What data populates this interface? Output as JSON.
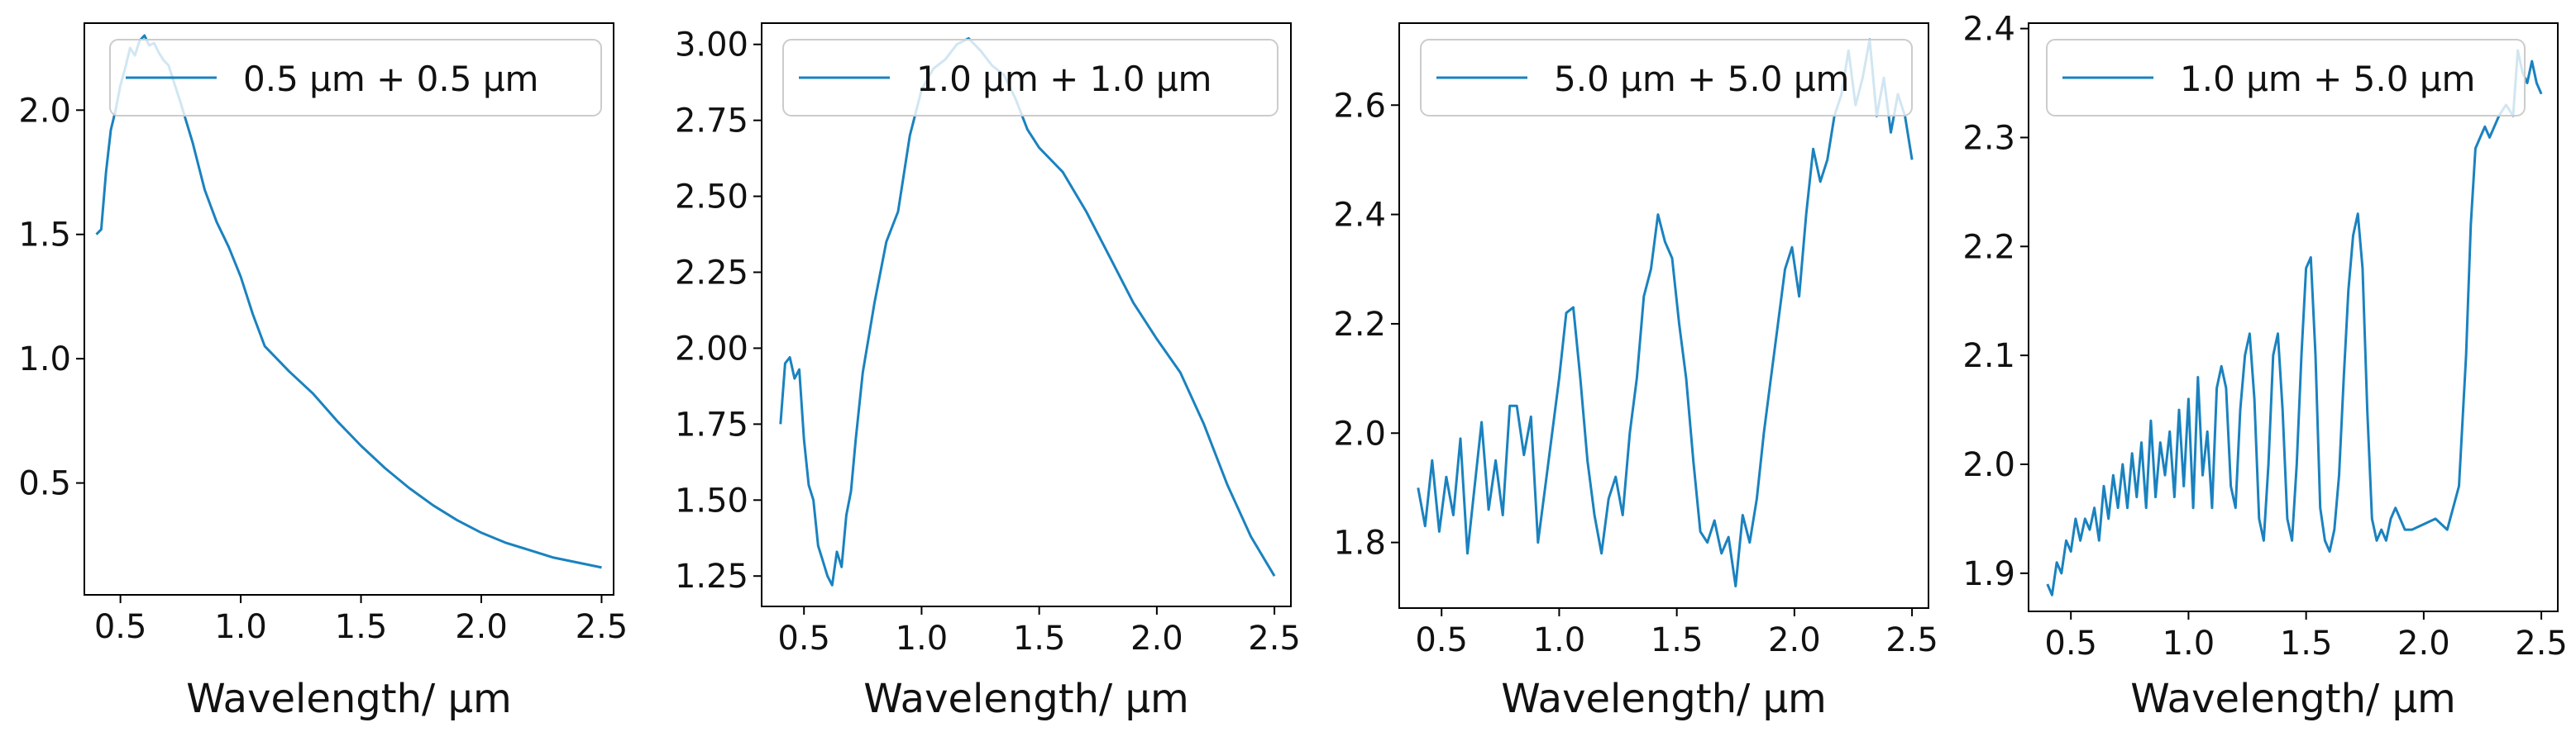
{
  "colors": {
    "line": "#1a82bf",
    "axis": "#000000",
    "text": "#111111",
    "legend_border": "#cccccc"
  },
  "chart_data": [
    {
      "type": "line",
      "xlabel": "Wavelength/ μm",
      "ylabel": "",
      "xlim": [
        0.35,
        2.55
      ],
      "ylim": [
        0.05,
        2.35
      ],
      "xticks": [
        "0.5",
        "1.0",
        "1.5",
        "2.0",
        "2.5"
      ],
      "yticks": [
        "0.5",
        "1.0",
        "1.5",
        "2.0"
      ],
      "legend": "0.5 μm + 0.5 μm",
      "legend_position": "top-right",
      "series": [
        {
          "name": "0.5 μm + 0.5 μm",
          "x": [
            0.4,
            0.42,
            0.44,
            0.46,
            0.48,
            0.5,
            0.52,
            0.54,
            0.56,
            0.58,
            0.6,
            0.62,
            0.64,
            0.66,
            0.68,
            0.7,
            0.72,
            0.75,
            0.8,
            0.85,
            0.9,
            0.95,
            1.0,
            1.05,
            1.1,
            1.2,
            1.3,
            1.4,
            1.5,
            1.6,
            1.7,
            1.8,
            1.9,
            2.0,
            2.1,
            2.2,
            2.3,
            2.4,
            2.5
          ],
          "y": [
            1.5,
            1.52,
            1.75,
            1.92,
            2.0,
            2.1,
            2.17,
            2.25,
            2.22,
            2.28,
            2.3,
            2.26,
            2.27,
            2.23,
            2.2,
            2.18,
            2.12,
            2.03,
            1.87,
            1.68,
            1.55,
            1.45,
            1.33,
            1.18,
            1.05,
            0.95,
            0.86,
            0.75,
            0.65,
            0.56,
            0.48,
            0.41,
            0.35,
            0.3,
            0.26,
            0.23,
            0.2,
            0.18,
            0.16
          ]
        }
      ]
    },
    {
      "type": "line",
      "xlabel": "Wavelength/ μm",
      "ylabel": "",
      "xlim": [
        0.32,
        2.57
      ],
      "ylim": [
        1.15,
        3.07
      ],
      "xticks": [
        "0.5",
        "1.0",
        "1.5",
        "2.0",
        "2.5"
      ],
      "yticks": [
        "1.25",
        "1.50",
        "1.75",
        "2.00",
        "2.25",
        "2.50",
        "2.75",
        "3.00"
      ],
      "legend": "1.0 μm + 1.0 μm",
      "legend_position": "top-right",
      "series": [
        {
          "name": "1.0 μm + 1.0 μm",
          "x": [
            0.4,
            0.42,
            0.44,
            0.46,
            0.48,
            0.5,
            0.52,
            0.54,
            0.56,
            0.58,
            0.6,
            0.62,
            0.64,
            0.66,
            0.68,
            0.7,
            0.72,
            0.75,
            0.8,
            0.85,
            0.9,
            0.95,
            1.0,
            1.05,
            1.1,
            1.15,
            1.2,
            1.25,
            1.3,
            1.35,
            1.4,
            1.45,
            1.5,
            1.6,
            1.7,
            1.8,
            1.9,
            2.0,
            2.1,
            2.2,
            2.3,
            2.4,
            2.5
          ],
          "y": [
            1.75,
            1.95,
            1.97,
            1.9,
            1.93,
            1.7,
            1.55,
            1.5,
            1.35,
            1.3,
            1.25,
            1.22,
            1.33,
            1.28,
            1.45,
            1.53,
            1.7,
            1.92,
            2.15,
            2.35,
            2.45,
            2.7,
            2.85,
            2.92,
            2.95,
            3.0,
            3.02,
            2.98,
            2.93,
            2.9,
            2.82,
            2.72,
            2.66,
            2.58,
            2.45,
            2.3,
            2.15,
            2.03,
            1.92,
            1.75,
            1.55,
            1.38,
            1.25
          ]
        }
      ]
    },
    {
      "type": "line",
      "xlabel": "Wavelength/ μm",
      "ylabel": "",
      "xlim": [
        0.32,
        2.57
      ],
      "ylim": [
        1.68,
        2.75
      ],
      "xticks": [
        "0.5",
        "1.0",
        "1.5",
        "2.0",
        "2.5"
      ],
      "yticks": [
        "1.8",
        "2.0",
        "2.2",
        "2.4",
        "2.6"
      ],
      "legend": "5.0 μm + 5.0 μm",
      "legend_position": "top-right",
      "series": [
        {
          "name": "5.0 μm + 5.0 μm",
          "x": [
            0.4,
            0.43,
            0.46,
            0.49,
            0.52,
            0.55,
            0.58,
            0.61,
            0.64,
            0.67,
            0.7,
            0.73,
            0.76,
            0.79,
            0.82,
            0.85,
            0.88,
            0.91,
            0.94,
            0.97,
            1.0,
            1.03,
            1.06,
            1.09,
            1.12,
            1.15,
            1.18,
            1.21,
            1.24,
            1.27,
            1.3,
            1.33,
            1.36,
            1.39,
            1.42,
            1.45,
            1.48,
            1.51,
            1.54,
            1.57,
            1.6,
            1.63,
            1.66,
            1.69,
            1.72,
            1.75,
            1.78,
            1.81,
            1.84,
            1.87,
            1.9,
            1.93,
            1.96,
            1.99,
            2.02,
            2.05,
            2.08,
            2.11,
            2.14,
            2.17,
            2.2,
            2.23,
            2.26,
            2.29,
            2.32,
            2.35,
            2.38,
            2.41,
            2.44,
            2.47,
            2.5
          ],
          "y": [
            1.9,
            1.83,
            1.95,
            1.82,
            1.92,
            1.85,
            1.99,
            1.78,
            1.9,
            2.02,
            1.86,
            1.95,
            1.85,
            2.05,
            2.05,
            1.96,
            2.03,
            1.8,
            1.9,
            2.0,
            2.1,
            2.22,
            2.23,
            2.1,
            1.95,
            1.85,
            1.78,
            1.88,
            1.92,
            1.85,
            2.0,
            2.1,
            2.25,
            2.3,
            2.4,
            2.35,
            2.32,
            2.2,
            2.1,
            1.95,
            1.82,
            1.8,
            1.84,
            1.78,
            1.81,
            1.72,
            1.85,
            1.8,
            1.88,
            2.0,
            2.1,
            2.2,
            2.3,
            2.34,
            2.25,
            2.4,
            2.52,
            2.46,
            2.5,
            2.58,
            2.62,
            2.7,
            2.6,
            2.65,
            2.72,
            2.58,
            2.65,
            2.55,
            2.62,
            2.58,
            2.5
          ]
        }
      ]
    },
    {
      "type": "line",
      "xlabel": "Wavelength/ μm",
      "ylabel": "",
      "xlim": [
        0.32,
        2.57
      ],
      "ylim": [
        1.865,
        2.405
      ],
      "xticks": [
        "0.5",
        "1.0",
        "1.5",
        "2.0",
        "2.5"
      ],
      "yticks": [
        "1.9",
        "2.0",
        "2.1",
        "2.2",
        "2.3",
        "2.4"
      ],
      "legend": "1.0 μm + 5.0 μm",
      "legend_position": "top-right",
      "series": [
        {
          "name": "1.0 μm + 5.0 μm",
          "x": [
            0.4,
            0.42,
            0.44,
            0.46,
            0.48,
            0.5,
            0.52,
            0.54,
            0.56,
            0.58,
            0.6,
            0.62,
            0.64,
            0.66,
            0.68,
            0.7,
            0.72,
            0.74,
            0.76,
            0.78,
            0.8,
            0.82,
            0.84,
            0.86,
            0.88,
            0.9,
            0.92,
            0.94,
            0.96,
            0.98,
            1.0,
            1.02,
            1.04,
            1.06,
            1.08,
            1.1,
            1.12,
            1.14,
            1.16,
            1.18,
            1.2,
            1.22,
            1.24,
            1.26,
            1.28,
            1.3,
            1.32,
            1.34,
            1.36,
            1.38,
            1.4,
            1.42,
            1.44,
            1.46,
            1.48,
            1.5,
            1.52,
            1.54,
            1.56,
            1.58,
            1.6,
            1.62,
            1.64,
            1.66,
            1.68,
            1.7,
            1.72,
            1.74,
            1.76,
            1.78,
            1.8,
            1.82,
            1.84,
            1.86,
            1.88,
            1.9,
            1.92,
            1.95,
            2.0,
            2.05,
            2.1,
            2.15,
            2.18,
            2.2,
            2.22,
            2.24,
            2.26,
            2.28,
            2.3,
            2.32,
            2.35,
            2.38,
            2.4,
            2.42,
            2.44,
            2.46,
            2.48,
            2.5
          ],
          "y": [
            1.89,
            1.88,
            1.91,
            1.9,
            1.93,
            1.92,
            1.95,
            1.93,
            1.95,
            1.94,
            1.96,
            1.93,
            1.98,
            1.95,
            1.99,
            1.96,
            2.0,
            1.96,
            2.01,
            1.97,
            2.02,
            1.96,
            2.04,
            1.97,
            2.02,
            1.99,
            2.03,
            1.97,
            2.05,
            1.98,
            2.06,
            1.96,
            2.08,
            1.99,
            2.03,
            1.96,
            2.07,
            2.09,
            2.07,
            1.98,
            1.96,
            2.05,
            2.1,
            2.12,
            2.06,
            1.95,
            1.93,
            2.0,
            2.1,
            2.12,
            2.05,
            1.95,
            1.93,
            2.0,
            2.1,
            2.18,
            2.19,
            2.1,
            1.96,
            1.93,
            1.92,
            1.94,
            1.99,
            2.08,
            2.16,
            2.21,
            2.23,
            2.18,
            2.05,
            1.95,
            1.93,
            1.94,
            1.93,
            1.95,
            1.96,
            1.95,
            1.94,
            1.94,
            1.945,
            1.95,
            1.94,
            1.98,
            2.1,
            2.22,
            2.29,
            2.3,
            2.31,
            2.3,
            2.31,
            2.32,
            2.33,
            2.32,
            2.38,
            2.36,
            2.35,
            2.37,
            2.35,
            2.34
          ]
        }
      ]
    }
  ]
}
